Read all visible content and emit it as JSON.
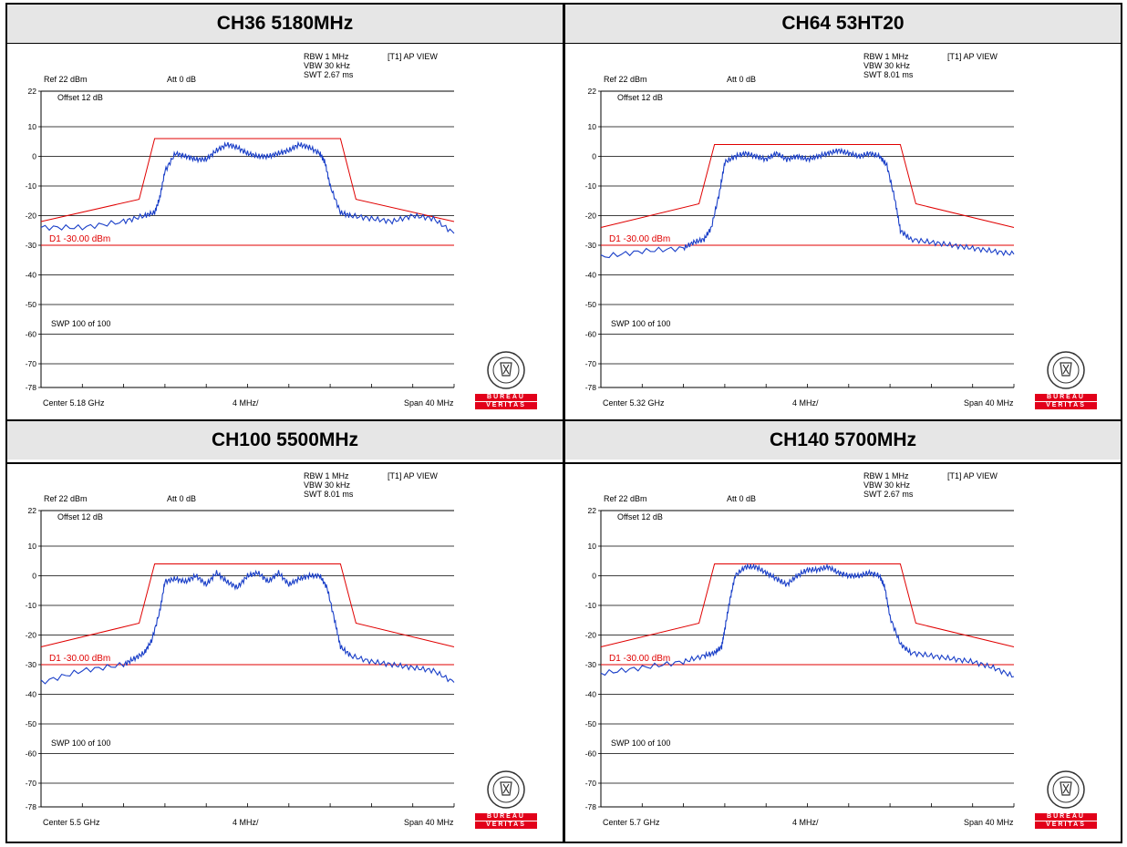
{
  "panels": [
    {
      "header": "CH36 5180MHz",
      "ref": "Ref 22 dBm",
      "att": "Att  0 dB",
      "offset": "Offset 12 dB",
      "rbw": "RBW 1 MHz",
      "vbw": "VBW 30 kHz",
      "swt": "SWT 2.67 ms",
      "view": "[T1] AP VIEW",
      "swp": "SWP 100 of 100",
      "display_line": "D1 -30.00 dBm",
      "center": "Center 5.18 GHz",
      "div": "4 MHz/",
      "span": "Span 40 MHz"
    },
    {
      "header": "CH64 53HT20",
      "ref": "Ref 22 dBm",
      "att": "Att  0 dB",
      "offset": "Offset 12 dB",
      "rbw": "RBW 1 MHz",
      "vbw": "VBW 30 kHz",
      "swt": "SWT 8.01 ms",
      "view": "[T1] AP VIEW",
      "swp": "SWP 100 of 100",
      "display_line": "D1 -30.00 dBm",
      "center": "Center 5.32 GHz",
      "div": "4 MHz/",
      "span": "Span 40 MHz"
    },
    {
      "header": "CH100 5500MHz",
      "ref": "Ref 22 dBm",
      "att": "Att  0 dB",
      "offset": "Offset 12 dB",
      "rbw": "RBW 1 MHz",
      "vbw": "VBW 30 kHz",
      "swt": "SWT 8.01 ms",
      "view": "[T1] AP VIEW",
      "swp": "SWP 100 of 100",
      "display_line": "D1 -30.00 dBm",
      "center": "Center 5.5 GHz",
      "div": "4 MHz/",
      "span": "Span 40 MHz"
    },
    {
      "header": "CH140 5700MHz",
      "ref": "Ref 22 dBm",
      "att": "Att  0 dB",
      "offset": "Offset 12 dB",
      "rbw": "RBW 1 MHz",
      "vbw": "VBW 30 kHz",
      "swt": "SWT 2.67 ms",
      "view": "[T1] AP VIEW",
      "swp": "SWP 100 of 100",
      "display_line": "D1 -30.00 dBm",
      "center": "Center 5.7 GHz",
      "div": "4 MHz/",
      "span": "Span 40 MHz"
    }
  ],
  "logo": {
    "top_text": "BUREAU VERITAS",
    "year": "1828",
    "bar1": "BUREAU",
    "bar2": "VERITAS",
    "bar_color": "#e2001a"
  },
  "colors": {
    "trace": "#1a3fc8",
    "limit": "#e00000",
    "grid": "#000000"
  },
  "chart_data": [
    {
      "type": "line",
      "title": "CH36 5180MHz",
      "x_unit": "MHz offset from center",
      "y_unit": "dBm",
      "ylim": [
        -78,
        22
      ],
      "yticks": [
        22,
        10,
        0,
        -10,
        -20,
        -30,
        -40,
        -50,
        -60,
        -70,
        -78
      ],
      "xlim": [
        -20,
        20
      ],
      "limit_line": {
        "x": [
          -20,
          -10.5,
          -9,
          9,
          10.5,
          20
        ],
        "y": [
          -22,
          -14.5,
          6,
          6,
          -14.5,
          -22
        ]
      },
      "display_line_y": -30,
      "trace": {
        "x": [
          -20,
          -16,
          -12,
          -10,
          -9,
          -8.5,
          -8,
          -7,
          -6,
          -5,
          -4,
          -3,
          -2,
          -1,
          0,
          1,
          2,
          3,
          4,
          5,
          6,
          7,
          7.5,
          8,
          9,
          10,
          12,
          14,
          16,
          18,
          20
        ],
        "y": [
          -24,
          -24,
          -22,
          -20,
          -19,
          -14,
          -5,
          1,
          0,
          -1,
          -1,
          2,
          4,
          3,
          1,
          0,
          0,
          1,
          2,
          4,
          3,
          1,
          -2,
          -10,
          -19,
          -20,
          -21,
          -22,
          -20,
          -21,
          -26
        ]
      }
    },
    {
      "type": "line",
      "title": "CH64 53HT20",
      "x_unit": "MHz offset from center",
      "y_unit": "dBm",
      "ylim": [
        -78,
        22
      ],
      "yticks": [
        22,
        10,
        0,
        -10,
        -20,
        -30,
        -40,
        -50,
        -60,
        -70,
        -78
      ],
      "xlim": [
        -20,
        20
      ],
      "limit_line": {
        "x": [
          -20,
          -10.5,
          -9,
          9,
          10.5,
          20
        ],
        "y": [
          -24,
          -16,
          4,
          4,
          -16,
          -24
        ]
      },
      "display_line_y": -30,
      "trace": {
        "x": [
          -20,
          -16,
          -12,
          -11,
          -10,
          -9.3,
          -8.5,
          -8,
          -7,
          -6,
          -5,
          -4,
          -3,
          -2,
          -1,
          0,
          1,
          2,
          3,
          4,
          5,
          6,
          7,
          7.7,
          8.5,
          9,
          10,
          12,
          14,
          16,
          18,
          20
        ],
        "y": [
          -34,
          -32,
          -31,
          -29,
          -28,
          -24,
          -12,
          -2,
          0,
          1,
          0,
          -1,
          1,
          -1,
          0,
          -1,
          0,
          1,
          2,
          1,
          0,
          1,
          0,
          -3,
          -15,
          -25,
          -28,
          -29,
          -30,
          -31,
          -32,
          -33
        ]
      }
    },
    {
      "type": "line",
      "title": "CH100 5500MHz",
      "x_unit": "MHz offset from center",
      "y_unit": "dBm",
      "ylim": [
        -78,
        22
      ],
      "yticks": [
        22,
        10,
        0,
        -10,
        -20,
        -30,
        -40,
        -50,
        -60,
        -70,
        -78
      ],
      "xlim": [
        -20,
        20
      ],
      "limit_line": {
        "x": [
          -20,
          -10.5,
          -9,
          9,
          10.5,
          20
        ],
        "y": [
          -24,
          -16,
          4,
          4,
          -16,
          -24
        ]
      },
      "display_line_y": -30,
      "trace": {
        "x": [
          -20,
          -16,
          -12,
          -11,
          -10,
          -9.3,
          -8.5,
          -8,
          -7,
          -6,
          -5,
          -4,
          -3,
          -2,
          -1,
          0,
          1,
          2,
          3,
          4,
          5,
          6,
          7,
          7.7,
          8.5,
          9,
          10,
          12,
          14,
          16,
          18,
          20
        ],
        "y": [
          -36,
          -32,
          -30,
          -28,
          -26,
          -22,
          -12,
          -2,
          -1,
          -2,
          0,
          -3,
          1,
          -2,
          -4,
          0,
          1,
          -2,
          1,
          -3,
          -1,
          0,
          0,
          -4,
          -16,
          -24,
          -27,
          -29,
          -30,
          -31,
          -32,
          -36
        ]
      }
    },
    {
      "type": "line",
      "title": "CH140 5700MHz",
      "x_unit": "MHz offset from center",
      "y_unit": "dBm",
      "ylim": [
        -78,
        22
      ],
      "yticks": [
        22,
        10,
        0,
        -10,
        -20,
        -30,
        -40,
        -50,
        -60,
        -70,
        -78
      ],
      "xlim": [
        -20,
        20
      ],
      "limit_line": {
        "x": [
          -20,
          -10.5,
          -9,
          9,
          10.5,
          20
        ],
        "y": [
          -24,
          -16,
          4,
          4,
          -16,
          -24
        ]
      },
      "display_line_y": -30,
      "trace": {
        "x": [
          -20,
          -16,
          -12,
          -10,
          -9,
          -8.3,
          -8,
          -7.5,
          -7,
          -6,
          -5,
          -4,
          -3,
          -2,
          -1,
          0,
          1,
          2,
          3,
          4,
          5,
          6,
          7,
          7.5,
          8,
          9,
          10,
          12,
          14,
          16,
          18,
          20
        ],
        "y": [
          -33,
          -31,
          -29,
          -27,
          -26,
          -24,
          -18,
          -8,
          0,
          3,
          3,
          1,
          -1,
          -3,
          0,
          2,
          2,
          3,
          1,
          0,
          0,
          1,
          0,
          -4,
          -14,
          -23,
          -26,
          -27,
          -28,
          -29,
          -31,
          -34
        ]
      }
    }
  ]
}
